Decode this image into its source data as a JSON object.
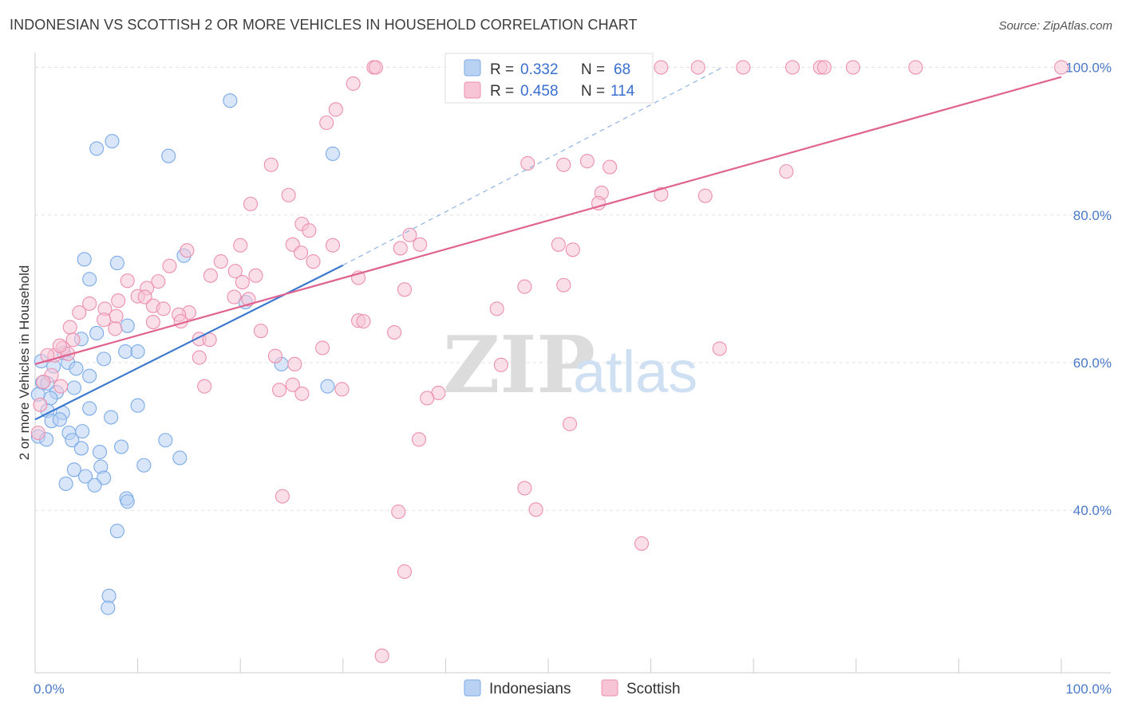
{
  "title": "INDONESIAN VS SCOTTISH 2 OR MORE VEHICLES IN HOUSEHOLD CORRELATION CHART",
  "source": "Source: ZipAtlas.com",
  "watermark": {
    "zip": "ZIP",
    "atlas": "atlas"
  },
  "legend": {
    "r_label": "R =",
    "n_label": "N =",
    "series": [
      {
        "name": "Indonesians",
        "r": "0.332",
        "n": "68",
        "color": "#7aaae8",
        "fill": "#b9d2f4"
      },
      {
        "name": "Scottish",
        "r": "0.458",
        "n": "114",
        "color": "#ec8faf",
        "fill": "#f7c4d5"
      }
    ]
  },
  "chart_data": {
    "type": "scatter",
    "title": "INDONESIAN VS SCOTTISH 2 OR MORE VEHICLES IN HOUSEHOLD CORRELATION CHART",
    "xlabel": "",
    "ylabel": "2 or more Vehicles in Household",
    "xlim": [
      0,
      100
    ],
    "ylim": [
      18,
      102
    ],
    "x_tick_labels": [
      "0.0%",
      "100.0%"
    ],
    "y_ticks": [
      {
        "value": 40,
        "label": "40.0%"
      },
      {
        "value": 60,
        "label": "60.0%"
      },
      {
        "value": 80,
        "label": "80.0%"
      },
      {
        "value": 100,
        "label": "100.0%"
      }
    ],
    "series": [
      {
        "name": "Indonesians",
        "color": "#3b78d0",
        "trend": {
          "x0": 0,
          "y0": 52.3,
          "x1": 30,
          "y1": 73.2,
          "dash_to_x": 67,
          "dash_to_y": 100
        },
        "points": [
          [
            19,
            95.5
          ],
          [
            7.5,
            90
          ],
          [
            6,
            89
          ],
          [
            13,
            88
          ],
          [
            29,
            88.3
          ],
          [
            14.5,
            74.5
          ],
          [
            4.8,
            74
          ],
          [
            8,
            73.5
          ],
          [
            5.3,
            71.3
          ],
          [
            20.5,
            68.2
          ],
          [
            6,
            64
          ],
          [
            9,
            65
          ],
          [
            4.5,
            63.2
          ],
          [
            2.8,
            61.3
          ],
          [
            8.8,
            61.5
          ],
          [
            10,
            61.5
          ],
          [
            6.7,
            60.5
          ],
          [
            0.6,
            60.2
          ],
          [
            3.2,
            60
          ],
          [
            1.8,
            59.5
          ],
          [
            4,
            59.2
          ],
          [
            5.3,
            58.2
          ],
          [
            24,
            59.8
          ],
          [
            0.7,
            57.3
          ],
          [
            1.2,
            57.2
          ],
          [
            3.8,
            56.6
          ],
          [
            2.1,
            56
          ],
          [
            0.3,
            55.7
          ],
          [
            1.5,
            55.2
          ],
          [
            28.5,
            56.8
          ],
          [
            5.3,
            53.8
          ],
          [
            1.2,
            53.5
          ],
          [
            2.7,
            53.2
          ],
          [
            10,
            54.2
          ],
          [
            7.4,
            52.6
          ],
          [
            1.6,
            52.1
          ],
          [
            2.4,
            52.3
          ],
          [
            3.3,
            50.5
          ],
          [
            4.6,
            50.7
          ],
          [
            0.3,
            50
          ],
          [
            1.1,
            49.6
          ],
          [
            3.6,
            49.5
          ],
          [
            12.7,
            49.5
          ],
          [
            4.5,
            48.4
          ],
          [
            6.3,
            47.9
          ],
          [
            8.4,
            48.6
          ],
          [
            14.1,
            47.1
          ],
          [
            3.8,
            45.5
          ],
          [
            6.4,
            45.9
          ],
          [
            10.6,
            46.1
          ],
          [
            4.9,
            44.6
          ],
          [
            6.7,
            44.4
          ],
          [
            3,
            43.6
          ],
          [
            5.8,
            43.4
          ],
          [
            8.9,
            41.6
          ],
          [
            9,
            41.2
          ],
          [
            8,
            37.2
          ],
          [
            7.2,
            28.4
          ],
          [
            7.1,
            26.8
          ]
        ]
      },
      {
        "name": "Scottish",
        "color": "#e0628f",
        "trend": {
          "x0": 0,
          "y0": 59.8,
          "x1": 100,
          "y1": 98.7
        },
        "points": [
          [
            33,
            100
          ],
          [
            33.2,
            100
          ],
          [
            55,
            100
          ],
          [
            59.5,
            100
          ],
          [
            61,
            100
          ],
          [
            64.6,
            100
          ],
          [
            69,
            100
          ],
          [
            73.8,
            100
          ],
          [
            76.5,
            100
          ],
          [
            76.9,
            100
          ],
          [
            79.7,
            100
          ],
          [
            85.8,
            100
          ],
          [
            100,
            100
          ],
          [
            31,
            97.8
          ],
          [
            29.3,
            94.3
          ],
          [
            28.4,
            92.5
          ],
          [
            48,
            87
          ],
          [
            51.5,
            86.8
          ],
          [
            53.8,
            87.3
          ],
          [
            56,
            86.5
          ],
          [
            23,
            86.8
          ],
          [
            55.2,
            83
          ],
          [
            61,
            82.8
          ],
          [
            65.3,
            82.6
          ],
          [
            73.2,
            85.9
          ],
          [
            24.7,
            82.7
          ],
          [
            21,
            81.5
          ],
          [
            54.9,
            81.6
          ],
          [
            26,
            78.8
          ],
          [
            26.7,
            77.9
          ],
          [
            36.5,
            77.3
          ],
          [
            37.5,
            76
          ],
          [
            25.1,
            76
          ],
          [
            29,
            75.9
          ],
          [
            20,
            75.9
          ],
          [
            35.6,
            75.5
          ],
          [
            51,
            76
          ],
          [
            52.4,
            75.3
          ],
          [
            14.8,
            75.2
          ],
          [
            25.9,
            74.9
          ],
          [
            18.1,
            73.7
          ],
          [
            27.1,
            73.7
          ],
          [
            13.1,
            73.1
          ],
          [
            19.5,
            72.4
          ],
          [
            17.1,
            71.8
          ],
          [
            21.5,
            71.8
          ],
          [
            9,
            71.1
          ],
          [
            12,
            71
          ],
          [
            20.2,
            70.9
          ],
          [
            31.5,
            71.5
          ],
          [
            10.9,
            70.1
          ],
          [
            47.7,
            70.3
          ],
          [
            51.5,
            70.5
          ],
          [
            36,
            69.9
          ],
          [
            10,
            69
          ],
          [
            10.7,
            68.9
          ],
          [
            19.4,
            68.9
          ],
          [
            20.8,
            68.6
          ],
          [
            8.1,
            68.4
          ],
          [
            5.3,
            68
          ],
          [
            11.5,
            67.7
          ],
          [
            12.5,
            67.3
          ],
          [
            4.3,
            66.8
          ],
          [
            6.8,
            67.3
          ],
          [
            15,
            66.8
          ],
          [
            14,
            66.5
          ],
          [
            45,
            67.3
          ],
          [
            7.9,
            66.3
          ],
          [
            6.7,
            65.8
          ],
          [
            11.5,
            65.5
          ],
          [
            14.2,
            65.6
          ],
          [
            31.5,
            65.7
          ],
          [
            32,
            65.6
          ],
          [
            7.8,
            64.6
          ],
          [
            22,
            64.3
          ],
          [
            35,
            64.1
          ],
          [
            3.4,
            64.8
          ],
          [
            3.7,
            63.1
          ],
          [
            16,
            63.2
          ],
          [
            17,
            63.1
          ],
          [
            2.7,
            62
          ],
          [
            3.2,
            61.2
          ],
          [
            1.9,
            61
          ],
          [
            2.4,
            62.3
          ],
          [
            28,
            62
          ],
          [
            66.7,
            61.9
          ],
          [
            16,
            60.7
          ],
          [
            23.4,
            60.9
          ],
          [
            1.2,
            61
          ],
          [
            25.3,
            59.8
          ],
          [
            45.4,
            59.7
          ],
          [
            1.6,
            58.3
          ],
          [
            0.8,
            57.4
          ],
          [
            2.5,
            56.8
          ],
          [
            16.5,
            56.8
          ],
          [
            25.1,
            57
          ],
          [
            29.9,
            56.4
          ],
          [
            23.8,
            56.3
          ],
          [
            39.3,
            55.9
          ],
          [
            38.2,
            55.2
          ],
          [
            26,
            55.8
          ],
          [
            0.5,
            54.3
          ],
          [
            0.3,
            50.5
          ],
          [
            52.1,
            51.7
          ],
          [
            37.4,
            49.6
          ],
          [
            47.7,
            43
          ],
          [
            24.1,
            41.9
          ],
          [
            48.8,
            40.1
          ],
          [
            35.4,
            39.8
          ],
          [
            59.1,
            35.5
          ],
          [
            36,
            31.7
          ],
          [
            33.8,
            20.3
          ]
        ]
      }
    ]
  },
  "bottom_legend": [
    "Indonesians",
    "Scottish"
  ]
}
